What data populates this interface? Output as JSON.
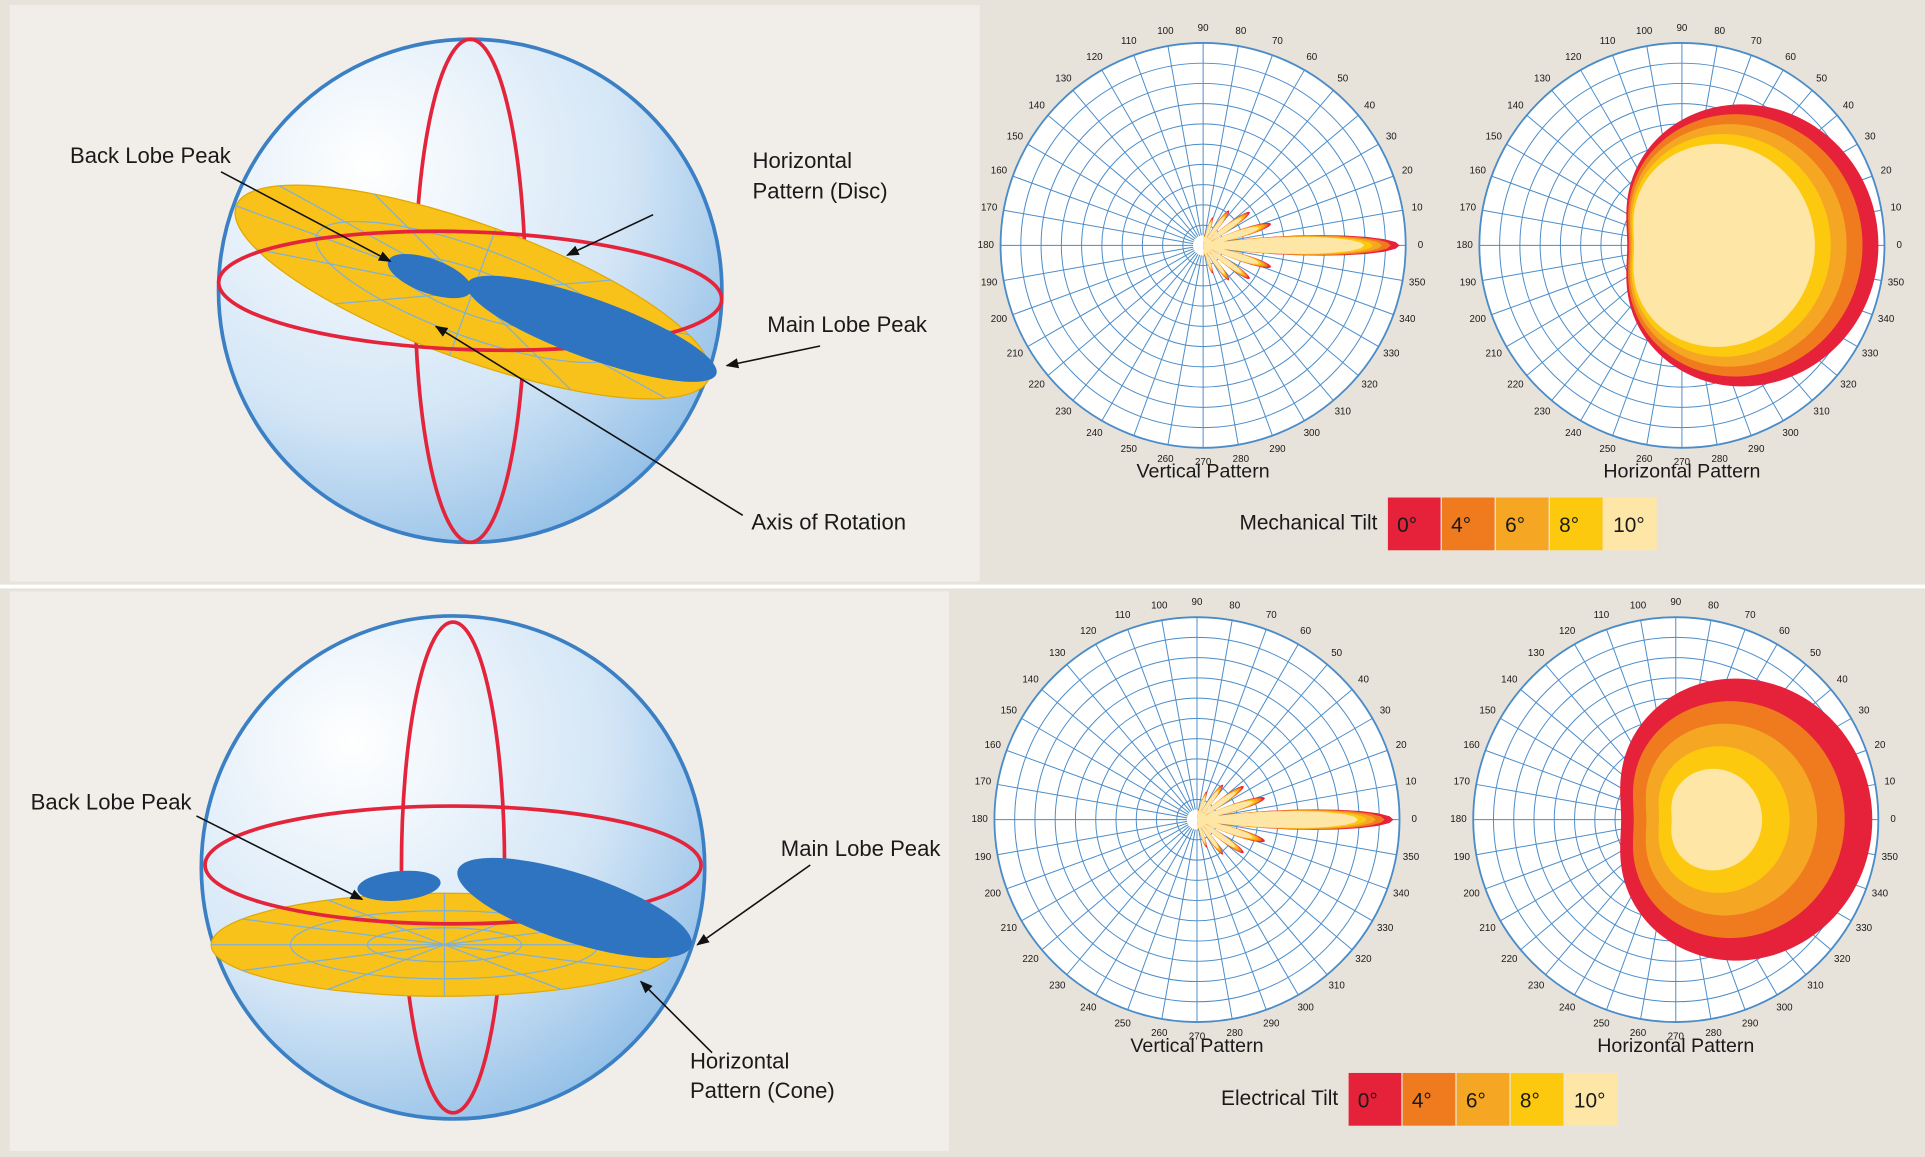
{
  "panels": [
    {
      "sphere": {
        "back_lobe": "Back Lobe Peak",
        "pattern": [
          "Horizontal",
          "Pattern (Disc)"
        ],
        "main_lobe": "Main Lobe Peak",
        "axis": "Axis of Rotation"
      },
      "plots": [
        {
          "title": "Vertical Pattern",
          "angles": [
            0,
            10,
            20,
            30,
            40,
            50,
            60,
            70,
            80,
            90,
            100,
            110,
            120,
            130,
            140,
            150,
            160,
            170,
            180,
            190,
            200,
            210,
            220,
            230,
            240,
            250,
            260,
            270,
            280,
            290,
            300,
            310,
            320,
            330,
            340,
            350
          ]
        },
        {
          "title": "Horizontal Pattern",
          "angles": [
            0,
            10,
            20,
            30,
            40,
            50,
            60,
            70,
            80,
            90,
            100,
            110,
            120,
            130,
            140,
            150,
            160,
            170,
            180,
            190,
            200,
            210,
            220,
            230,
            240,
            250,
            260,
            270,
            280,
            290,
            300,
            310,
            320,
            330,
            340,
            350
          ]
        }
      ],
      "legend": {
        "title": "Mechanical Tilt",
        "items": [
          {
            "label": "0°",
            "color": "#e6213a"
          },
          {
            "label": "4°",
            "color": "#f07a1e"
          },
          {
            "label": "6°",
            "color": "#f5a623"
          },
          {
            "label": "8°",
            "color": "#fcc90f"
          },
          {
            "label": "10°",
            "color": "#fde6a6"
          }
        ]
      }
    },
    {
      "sphere": {
        "back_lobe": "Back Lobe Peak",
        "pattern": [
          "Horizontal",
          "Pattern (Cone)"
        ],
        "main_lobe": "Main Lobe Peak"
      },
      "plots": [
        {
          "title": "Vertical Pattern",
          "angles": [
            0,
            10,
            20,
            30,
            40,
            50,
            60,
            70,
            80,
            90,
            100,
            110,
            120,
            130,
            140,
            150,
            160,
            170,
            180,
            190,
            200,
            210,
            220,
            230,
            240,
            250,
            260,
            270,
            280,
            290,
            300,
            310,
            320,
            330,
            340,
            350
          ]
        },
        {
          "title": "Horizontal Pattern",
          "angles": [
            0,
            10,
            20,
            30,
            40,
            50,
            60,
            70,
            80,
            90,
            100,
            110,
            120,
            130,
            140,
            150,
            160,
            170,
            180,
            190,
            200,
            210,
            220,
            230,
            240,
            250,
            260,
            270,
            280,
            290,
            300,
            310,
            320,
            330,
            340,
            350
          ]
        }
      ],
      "legend": {
        "title": "Electrical Tilt",
        "items": [
          {
            "label": "0°",
            "color": "#e6213a"
          },
          {
            "label": "4°",
            "color": "#f07a1e"
          },
          {
            "label": "6°",
            "color": "#f5a623"
          },
          {
            "label": "8°",
            "color": "#fcc90f"
          },
          {
            "label": "10°",
            "color": "#fde6a6"
          }
        ]
      }
    }
  ]
}
